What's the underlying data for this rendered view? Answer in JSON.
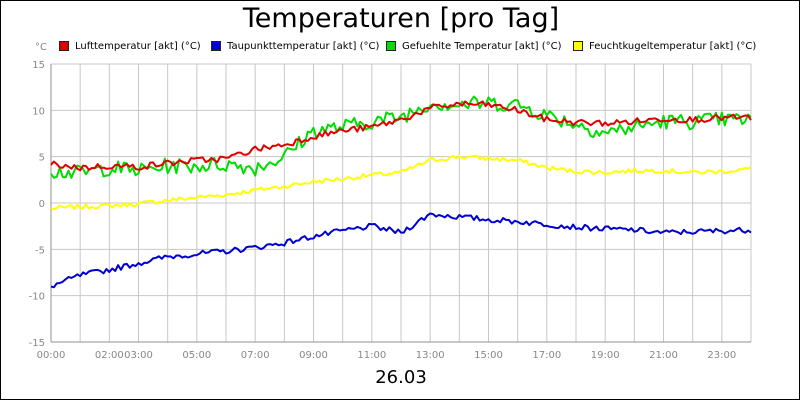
{
  "chart_data": {
    "type": "line",
    "title": "Temperaturen [pro Tag]",
    "ylabel": "°C",
    "xlabel": "26.03",
    "ylim": [
      -15,
      15
    ],
    "xlim": [
      0,
      24
    ],
    "yticks": [
      -15,
      -10,
      -5,
      0,
      5,
      10,
      15
    ],
    "xticks": [
      {
        "h": 0,
        "label": "00:00"
      },
      {
        "h": 2,
        "label": "02:00"
      },
      {
        "h": 3,
        "label": "03:00"
      },
      {
        "h": 5,
        "label": "05:00"
      },
      {
        "h": 7,
        "label": "07:00"
      },
      {
        "h": 9,
        "label": "09:00"
      },
      {
        "h": 11,
        "label": "11:00"
      },
      {
        "h": 13,
        "label": "13:00"
      },
      {
        "h": 15,
        "label": "15:00"
      },
      {
        "h": 17,
        "label": "17:00"
      },
      {
        "h": 19,
        "label": "19:00"
      },
      {
        "h": 21,
        "label": "21:00"
      },
      {
        "h": 23,
        "label": "23:00"
      }
    ],
    "grid": true,
    "x": [
      0,
      1,
      2,
      3,
      4,
      5,
      6,
      7,
      8,
      9,
      10,
      11,
      12,
      13,
      14,
      15,
      16,
      17,
      18,
      19,
      20,
      21,
      22,
      23,
      24
    ],
    "series": [
      {
        "name": "Lufttemperatur [akt] (°C)",
        "color": "#e00000",
        "values": [
          4.2,
          3.8,
          4.0,
          3.9,
          4.3,
          4.6,
          4.8,
          5.8,
          6.3,
          7.2,
          7.8,
          8.2,
          9.0,
          10.2,
          10.7,
          10.6,
          10.0,
          9.0,
          8.7,
          8.6,
          8.8,
          9.1,
          9.0,
          9.2,
          9.2
        ]
      },
      {
        "name": "Taupunkttemperatur [akt] (°C)",
        "color": "#0000d0",
        "values": [
          -9.0,
          -7.8,
          -7.2,
          -6.5,
          -5.8,
          -5.5,
          -5.2,
          -4.8,
          -4.3,
          -3.6,
          -3.0,
          -2.5,
          -3.2,
          -1.2,
          -1.5,
          -1.8,
          -2.0,
          -2.3,
          -2.6,
          -2.8,
          -2.9,
          -3.2,
          -3.1,
          -3.0,
          -2.9
        ]
      },
      {
        "name": "Gefuehlte Temperatur [akt] (°C)",
        "color": "#00dd00",
        "values": [
          3.5,
          3.2,
          3.8,
          3.5,
          4.0,
          4.0,
          4.2,
          3.8,
          5.0,
          7.8,
          8.2,
          8.8,
          9.3,
          10.8,
          10.6,
          10.8,
          10.6,
          9.5,
          8.5,
          7.6,
          8.2,
          8.8,
          8.8,
          9.0,
          9.0
        ]
      },
      {
        "name": "Feuchtkugeltemperatur [akt] (°C)",
        "color": "#ffff00",
        "values": [
          -0.6,
          -0.4,
          -0.3,
          -0.1,
          0.3,
          0.6,
          0.9,
          1.4,
          1.8,
          2.3,
          2.6,
          3.0,
          3.3,
          4.6,
          5.0,
          4.8,
          4.6,
          3.8,
          3.4,
          3.3,
          3.5,
          3.5,
          3.3,
          3.4,
          3.7
        ]
      }
    ]
  }
}
